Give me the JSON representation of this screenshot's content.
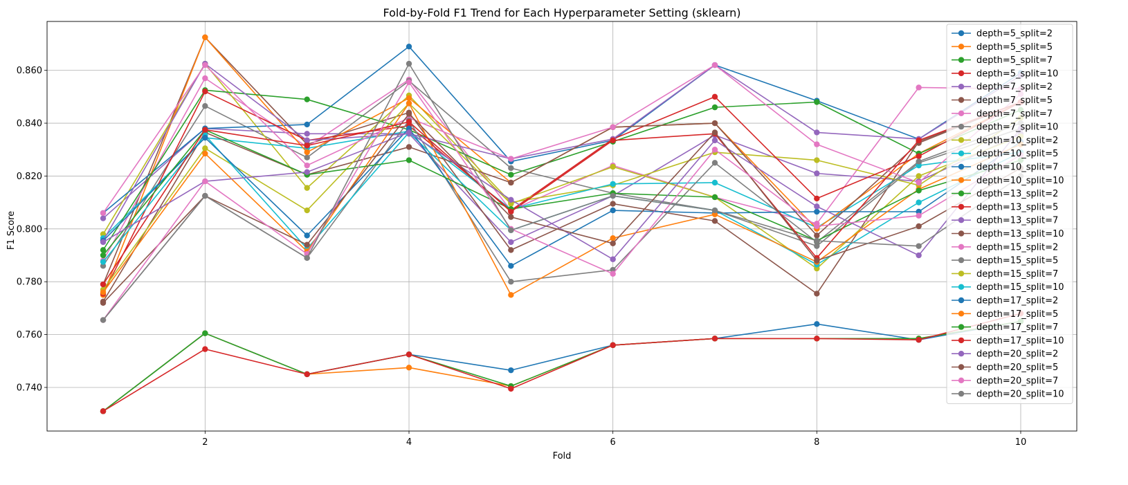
{
  "chart_data": {
    "type": "line",
    "title": "Fold-by-Fold F1 Trend for Each Hyperparameter Setting (sklearn)",
    "xlabel": "Fold",
    "ylabel": "F1 Score",
    "xlim": [
      0.45,
      10.55
    ],
    "ylim": [
      0.7235,
      0.8785
    ],
    "xticks": [
      2,
      4,
      6,
      8,
      10
    ],
    "yticks": [
      0.74,
      0.76,
      0.78,
      0.8,
      0.82,
      0.84,
      0.86
    ],
    "ytick_labels": [
      "0.740",
      "0.760",
      "0.780",
      "0.800",
      "0.820",
      "0.840",
      "0.860"
    ],
    "grid": true,
    "legend_position": "top-right",
    "x": [
      1,
      2,
      3,
      4,
      5,
      6,
      7,
      8,
      9,
      10
    ],
    "series": [
      {
        "name": "depth=5_split=2",
        "color": "#1f77b4",
        "values": [
          0.731,
          0.7605,
          0.745,
          0.7525,
          0.7465,
          0.756,
          0.7585,
          0.764,
          0.758,
          0.765
        ]
      },
      {
        "name": "depth=5_split=5",
        "color": "#ff7f0e",
        "values": [
          0.731,
          0.7605,
          0.745,
          0.7475,
          0.7405,
          0.756,
          0.7585,
          0.7585,
          0.7585,
          0.765
        ]
      },
      {
        "name": "depth=5_split=7",
        "color": "#2ca02c",
        "values": [
          0.731,
          0.7605,
          0.745,
          0.7525,
          0.7405,
          0.756,
          0.7585,
          0.7585,
          0.7585,
          0.765
        ]
      },
      {
        "name": "depth=5_split=10",
        "color": "#d62728",
        "values": [
          0.731,
          0.7545,
          0.745,
          0.7525,
          0.7395,
          0.756,
          0.7585,
          0.7585,
          0.758,
          0.768
        ]
      },
      {
        "name": "depth=7_split=2",
        "color": "#9467bd",
        "values": [
          0.804,
          0.838,
          0.836,
          0.836,
          0.795,
          0.8125,
          0.8355,
          0.821,
          0.818,
          0.836
        ]
      },
      {
        "name": "depth=7_split=5",
        "color": "#8c564b",
        "values": [
          0.779,
          0.8725,
          0.832,
          0.844,
          0.792,
          0.8095,
          0.803,
          0.7755,
          0.833,
          0.848
        ]
      },
      {
        "name": "depth=7_split=7",
        "color": "#e377c2",
        "values": [
          0.788,
          0.857,
          0.831,
          0.8565,
          0.807,
          0.824,
          0.812,
          0.802,
          0.8535,
          0.853
        ]
      },
      {
        "name": "depth=7_split=10",
        "color": "#7f7f7f",
        "values": [
          0.786,
          0.8465,
          0.827,
          0.856,
          0.823,
          0.8135,
          0.807,
          0.7935,
          0.825,
          0.838
        ]
      },
      {
        "name": "depth=10_split=2",
        "color": "#bcbd22",
        "values": [
          0.798,
          0.8625,
          0.8155,
          0.8505,
          0.81,
          0.8165,
          0.829,
          0.826,
          0.8165,
          0.842
        ]
      },
      {
        "name": "depth=10_split=5",
        "color": "#17becf",
        "values": [
          0.7965,
          0.8345,
          0.8305,
          0.837,
          0.8075,
          0.817,
          0.8175,
          0.8005,
          0.824,
          0.829
        ]
      },
      {
        "name": "depth=10_split=7",
        "color": "#1f77b4",
        "values": [
          0.806,
          0.838,
          0.8395,
          0.869,
          0.8255,
          0.8335,
          0.862,
          0.8485,
          0.834,
          0.859
        ]
      },
      {
        "name": "depth=10_split=10",
        "color": "#ff7f0e",
        "values": [
          0.775,
          0.8725,
          0.829,
          0.8495,
          0.8175,
          0.8385,
          0.84,
          0.8,
          0.8285,
          0.848
        ]
      },
      {
        "name": "depth=13_split=2",
        "color": "#2ca02c",
        "values": [
          0.792,
          0.8525,
          0.849,
          0.8375,
          0.8205,
          0.833,
          0.846,
          0.848,
          0.8285,
          0.845
        ]
      },
      {
        "name": "depth=13_split=5",
        "color": "#d62728",
        "values": [
          0.7755,
          0.852,
          0.8335,
          0.839,
          0.807,
          0.834,
          0.85,
          0.8115,
          0.8275,
          0.848
        ]
      },
      {
        "name": "depth=13_split=7",
        "color": "#9467bd",
        "values": [
          0.7955,
          0.8625,
          0.8335,
          0.836,
          0.8265,
          0.834,
          0.862,
          0.8365,
          0.834,
          0.858
        ]
      },
      {
        "name": "depth=13_split=10",
        "color": "#8c564b",
        "values": [
          0.7725,
          0.8365,
          0.8205,
          0.831,
          0.8175,
          0.8385,
          0.84,
          0.7975,
          0.8325,
          0.848
        ]
      },
      {
        "name": "depth=15_split=2",
        "color": "#e377c2",
        "values": [
          0.806,
          0.862,
          0.824,
          0.842,
          0.8265,
          0.8385,
          0.862,
          0.832,
          0.8175,
          0.851
        ]
      },
      {
        "name": "depth=15_split=5",
        "color": "#7f7f7f",
        "values": [
          0.7655,
          0.8125,
          0.789,
          0.841,
          0.78,
          0.7845,
          0.825,
          0.795,
          0.8255,
          0.84
        ]
      },
      {
        "name": "depth=15_split=7",
        "color": "#bcbd22",
        "values": [
          0.777,
          0.8305,
          0.807,
          0.8475,
          0.8095,
          0.8235,
          0.812,
          0.785,
          0.82,
          0.835
        ]
      },
      {
        "name": "depth=15_split=10",
        "color": "#17becf",
        "values": [
          0.7875,
          0.8355,
          0.7925,
          0.8365,
          0.7995,
          0.8125,
          0.807,
          0.7865,
          0.81,
          0.829
        ]
      },
      {
        "name": "depth=17_split=2",
        "color": "#1f77b4",
        "values": [
          0.7955,
          0.8345,
          0.7975,
          0.838,
          0.786,
          0.807,
          0.806,
          0.8065,
          0.8065,
          0.833
        ]
      },
      {
        "name": "depth=17_split=5",
        "color": "#ff7f0e",
        "values": [
          0.776,
          0.8285,
          0.7915,
          0.8475,
          0.775,
          0.7965,
          0.8055,
          0.7875,
          0.815,
          0.832
        ]
      },
      {
        "name": "depth=17_split=7",
        "color": "#2ca02c",
        "values": [
          0.79,
          0.8375,
          0.8205,
          0.826,
          0.8075,
          0.8135,
          0.812,
          0.7955,
          0.8145,
          0.826
        ]
      },
      {
        "name": "depth=17_split=10",
        "color": "#d62728",
        "values": [
          0.779,
          0.8375,
          0.8315,
          0.8405,
          0.8065,
          0.8335,
          0.836,
          0.789,
          0.8335,
          0.848
        ]
      },
      {
        "name": "depth=20_split=2",
        "color": "#9467bd",
        "values": [
          0.795,
          0.818,
          0.8215,
          0.8365,
          0.811,
          0.7885,
          0.8335,
          0.8085,
          0.79,
          0.838
        ]
      },
      {
        "name": "depth=20_split=5",
        "color": "#8c564b",
        "values": [
          0.772,
          0.8125,
          0.794,
          0.8435,
          0.8045,
          0.7945,
          0.8365,
          0.788,
          0.801,
          0.823
        ]
      },
      {
        "name": "depth=20_split=7",
        "color": "#e377c2",
        "values": [
          0.7655,
          0.818,
          0.7905,
          0.8555,
          0.8,
          0.783,
          0.83,
          0.801,
          0.805,
          0.828
        ]
      },
      {
        "name": "depth=20_split=10",
        "color": "#7f7f7f",
        "values": [
          0.7655,
          0.8125,
          0.789,
          0.8625,
          0.7995,
          0.8125,
          0.807,
          0.7955,
          0.7935,
          0.82
        ]
      }
    ]
  }
}
